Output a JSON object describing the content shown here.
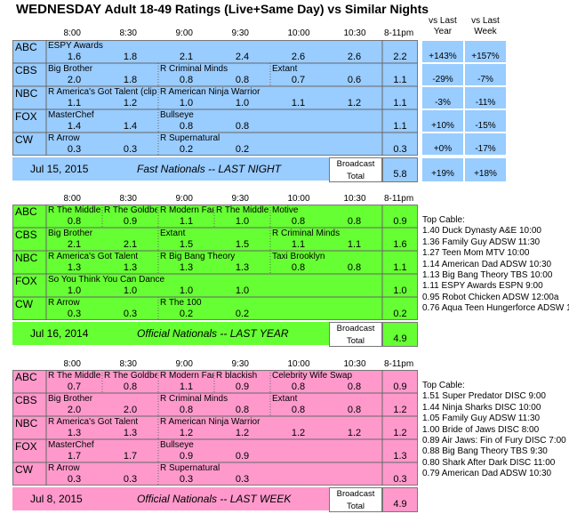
{
  "title": {
    "day": "WEDNESDAY",
    "rest": "Adult 18-49 Ratings (Live+Same Day) vs Similar Nights"
  },
  "compare_headers": {
    "vs_last_year": [
      "vs Last",
      "Year"
    ],
    "vs_last_week": [
      "vs Last",
      "Week"
    ]
  },
  "times": [
    "8:00",
    "8:30",
    "9:00",
    "9:30",
    "10:00",
    "10:30",
    "8-11pm"
  ],
  "broadcast_label": [
    "Broadcast",
    "Total"
  ],
  "colors": {
    "blue": "#99ccff",
    "green": "#66ff33",
    "pink": "#ff99cc"
  },
  "blocks": [
    {
      "color": "blue",
      "date": "Jul 15, 2015",
      "label": "Fast Nationals --  LAST NIGHT",
      "total": "5.8",
      "total_yoy": "+19%",
      "total_wow": "+18%",
      "rows": [
        {
          "net": "ABC",
          "shows": [
            {
              "name": "ESPY Awards",
              "start": 0,
              "span": 6
            }
          ],
          "values": [
            "1.6",
            "1.8",
            "2.1",
            "2.4",
            "2.6",
            "2.6"
          ],
          "avg": "2.2",
          "yoy": "+143%",
          "wow": "+157%"
        },
        {
          "net": "CBS",
          "shows": [
            {
              "name": "Big Brother",
              "start": 0,
              "span": 2
            },
            {
              "name": "R Criminal Minds",
              "start": 2,
              "span": 2
            },
            {
              "name": "Extant",
              "start": 4,
              "span": 2
            }
          ],
          "values": [
            "2.0",
            "1.8",
            "0.8",
            "0.8",
            "0.7",
            "0.6"
          ],
          "avg": "1.1",
          "yoy": "-29%",
          "wow": "-7%"
        },
        {
          "net": "NBC",
          "shows": [
            {
              "name": "R America's Got Talent (clip",
              "start": 0,
              "span": 2
            },
            {
              "name": "R American Ninja Warrior",
              "start": 2,
              "span": 4
            }
          ],
          "values": [
            "1.1",
            "1.2",
            "1.0",
            "1.0",
            "1.1",
            "1.2"
          ],
          "avg": "1.1",
          "yoy": "-3%",
          "wow": "-11%"
        },
        {
          "net": "FOX",
          "shows": [
            {
              "name": "MasterChef",
              "start": 0,
              "span": 2
            },
            {
              "name": "Bullseye",
              "start": 2,
              "span": 2
            }
          ],
          "values": [
            "1.4",
            "1.4",
            "0.8",
            "0.8",
            "",
            ""
          ],
          "avg": "1.1",
          "yoy": "+10%",
          "wow": "-15%"
        },
        {
          "net": "CW",
          "shows": [
            {
              "name": "R Arrow",
              "start": 0,
              "span": 2
            },
            {
              "name": "R Supernatural",
              "start": 2,
              "span": 2
            }
          ],
          "values": [
            "0.3",
            "0.3",
            "0.2",
            "0.2",
            "",
            ""
          ],
          "avg": "0.3",
          "yoy": "+0%",
          "wow": "-17%"
        }
      ]
    },
    {
      "color": "green",
      "date": "Jul 16, 2014",
      "label": "Official Nationals --  LAST YEAR",
      "total": "4.9",
      "rows": [
        {
          "net": "ABC",
          "shows": [
            {
              "name": "R The Middle",
              "start": 0,
              "span": 1
            },
            {
              "name": "R The Goldbe",
              "start": 1,
              "span": 1
            },
            {
              "name": "R Modern Far",
              "start": 2,
              "span": 1
            },
            {
              "name": "R The Middle",
              "start": 3,
              "span": 1
            },
            {
              "name": "Motive",
              "start": 4,
              "span": 2
            }
          ],
          "values": [
            "0.8",
            "0.9",
            "1.1",
            "1.0",
            "0.8",
            "0.8"
          ],
          "avg": "0.9"
        },
        {
          "net": "CBS",
          "shows": [
            {
              "name": "Big Brother",
              "start": 0,
              "span": 2
            },
            {
              "name": "Extant",
              "start": 2,
              "span": 2
            },
            {
              "name": "R Criminal Minds",
              "start": 4,
              "span": 2
            }
          ],
          "values": [
            "2.1",
            "2.1",
            "1.5",
            "1.5",
            "1.1",
            "1.1"
          ],
          "avg": "1.6"
        },
        {
          "net": "NBC",
          "shows": [
            {
              "name": "R America's Got Talent",
              "start": 0,
              "span": 2
            },
            {
              "name": "R Big Bang Theory",
              "start": 2,
              "span": 2
            },
            {
              "name": "Taxi Brooklyn",
              "start": 4,
              "span": 2
            }
          ],
          "values": [
            "1.3",
            "1.3",
            "1.3",
            "1.3",
            "0.8",
            "0.8"
          ],
          "avg": "1.1"
        },
        {
          "net": "FOX",
          "shows": [
            {
              "name": "So You Think You Can Dance",
              "start": 0,
              "span": 4
            }
          ],
          "values": [
            "1.0",
            "1.0",
            "1.0",
            "1.0",
            "",
            ""
          ],
          "avg": "1.0"
        },
        {
          "net": "CW",
          "shows": [
            {
              "name": "R Arrow",
              "start": 0,
              "span": 2
            },
            {
              "name": "R The 100",
              "start": 2,
              "span": 2
            }
          ],
          "values": [
            "0.3",
            "0.3",
            "0.2",
            "0.2",
            "",
            ""
          ],
          "avg": "0.2"
        }
      ],
      "top_cable_title": "Top Cable:",
      "top_cable": [
        "1.40 Duck Dynasty A&E 10:00",
        "1.36 Family Guy ADSW 11:30",
        "1.27 Teen Mom MTV 10:00",
        "1.14 American Dad ADSW 10:30",
        "1.13 Big Bang Theory TBS 10:00",
        "1.11 ESPY Awards ESPN 9:00",
        "0.95 Robot Chicken ADSW 12:00a",
        "0.76 Aqua Teen Hungerforce ADSW 1"
      ]
    },
    {
      "color": "pink",
      "date": "Jul 8, 2015",
      "label": "Official Nationals --  LAST WEEK",
      "total": "4.9",
      "rows": [
        {
          "net": "ABC",
          "shows": [
            {
              "name": "R The Middle",
              "start": 0,
              "span": 1
            },
            {
              "name": "R The Goldbe",
              "start": 1,
              "span": 1
            },
            {
              "name": "R Modern Far",
              "start": 2,
              "span": 1
            },
            {
              "name": "R blackish",
              "start": 3,
              "span": 1
            },
            {
              "name": "Celebrity Wife Swap",
              "start": 4,
              "span": 2
            }
          ],
          "values": [
            "0.7",
            "0.8",
            "1.1",
            "0.9",
            "0.8",
            "0.8"
          ],
          "avg": "0.9"
        },
        {
          "net": "CBS",
          "shows": [
            {
              "name": "Big Brother",
              "start": 0,
              "span": 2
            },
            {
              "name": "R Criminal Minds",
              "start": 2,
              "span": 2
            },
            {
              "name": "Extant",
              "start": 4,
              "span": 2
            }
          ],
          "values": [
            "2.0",
            "2.0",
            "0.8",
            "0.8",
            "0.8",
            "0.8"
          ],
          "avg": "1.2"
        },
        {
          "net": "NBC",
          "shows": [
            {
              "name": "R America's Got Talent",
              "start": 0,
              "span": 2
            },
            {
              "name": "R American Ninja Warrior",
              "start": 2,
              "span": 4
            }
          ],
          "values": [
            "1.3",
            "1.3",
            "1.2",
            "1.2",
            "1.2",
            "1.2"
          ],
          "avg": "1.2"
        },
        {
          "net": "FOX",
          "shows": [
            {
              "name": "MasterChef",
              "start": 0,
              "span": 2
            },
            {
              "name": "Bullseye",
              "start": 2,
              "span": 2
            }
          ],
          "values": [
            "1.7",
            "1.7",
            "0.9",
            "0.9",
            "",
            ""
          ],
          "avg": "1.3"
        },
        {
          "net": "CW",
          "shows": [
            {
              "name": "R Arrow",
              "start": 0,
              "span": 2
            },
            {
              "name": "R Supernatural",
              "start": 2,
              "span": 2
            }
          ],
          "values": [
            "0.3",
            "0.3",
            "0.3",
            "0.3",
            "",
            ""
          ],
          "avg": "0.3"
        }
      ],
      "top_cable_title": "Top Cable:",
      "top_cable": [
        "1.51 Super Predator DISC 9:00",
        "1.44 Ninja Sharks DISC 10:00",
        "1.05 Family Guy ADSW 11:30",
        "1.00 Bride of Jaws DISC 8:00",
        "0.89 Air Jaws: Fin of Fury DISC 7:00",
        "0.88 Big Bang Theory TBS 9:30",
        "0.80 Shark After Dark DISC 11:00",
        "0.79 American Dad ADSW 10:30"
      ]
    }
  ]
}
